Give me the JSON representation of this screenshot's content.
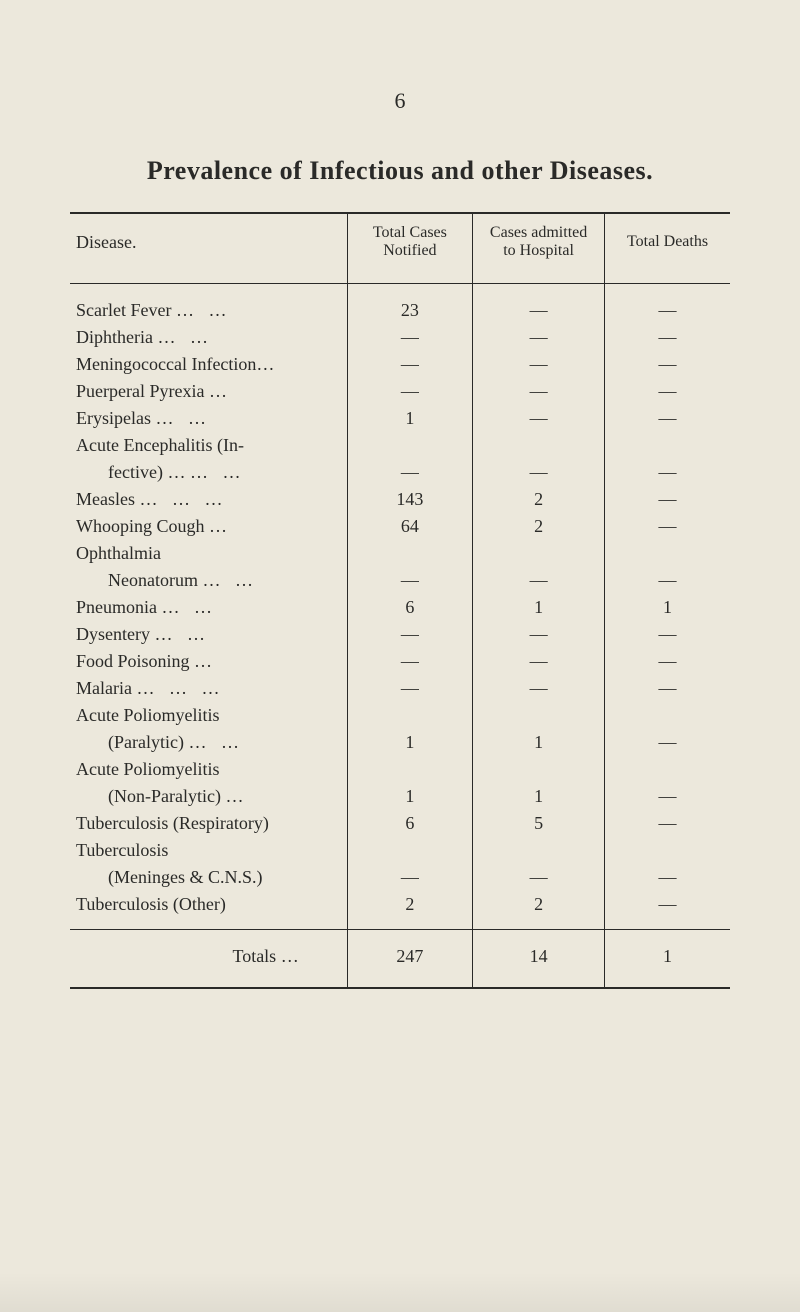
{
  "page_number": "6",
  "title": "Prevalence of Infectious and other Diseases.",
  "table": {
    "type": "table",
    "background_color": "#ece8dc",
    "rule_color": "#2a2a28",
    "text_color": "#2a2a28",
    "font_family": "Times New Roman",
    "body_fontsize": 18,
    "header_fontsize": 16,
    "column_widths_pct": [
      42,
      19,
      20,
      19
    ],
    "col_alignment": [
      "left",
      "center",
      "center",
      "center"
    ],
    "columns": {
      "disease": "Disease.",
      "total_cases_l1": "Total Cases",
      "total_cases_l2": "Notified",
      "admitted_l1": "Cases admitted",
      "admitted_l2": "to Hospital",
      "deaths": "Total Deaths"
    },
    "rows": [
      {
        "label": "Scarlet Fever",
        "dots": "…     …",
        "indent": 0,
        "cases": "23",
        "admitted": "—",
        "deaths": "—"
      },
      {
        "label": "Diphtheria",
        "dots": "…     …",
        "indent": 0,
        "cases": "—",
        "admitted": "—",
        "deaths": "—"
      },
      {
        "label": "Meningococcal Infection…",
        "dots": "",
        "indent": 0,
        "cases": "—",
        "admitted": "—",
        "deaths": "—"
      },
      {
        "label": "Puerperal Pyrexia",
        "dots": "…",
        "indent": 0,
        "cases": "—",
        "admitted": "—",
        "deaths": "—"
      },
      {
        "label": "Erysipelas",
        "dots": "…     …",
        "indent": 0,
        "cases": "1",
        "admitted": "—",
        "deaths": "—"
      },
      {
        "label": "Acute   Encephalitis   (In-",
        "dots": "",
        "indent": 0,
        "cases": "",
        "admitted": "",
        "deaths": ""
      },
      {
        "label": "fective) …",
        "dots": "…     …",
        "indent": 1,
        "cases": "—",
        "admitted": "—",
        "deaths": "—"
      },
      {
        "label": "Measles",
        "dots": "…     …     …",
        "indent": 0,
        "cases": "143",
        "admitted": "2",
        "deaths": "—"
      },
      {
        "label": "Whooping Cough",
        "dots": "…",
        "indent": 0,
        "cases": "64",
        "admitted": "2",
        "deaths": "—"
      },
      {
        "label": "Ophthalmia",
        "dots": "",
        "indent": 0,
        "cases": "",
        "admitted": "",
        "deaths": ""
      },
      {
        "label": "Neonatorum",
        "dots": "…     …",
        "indent": 1,
        "cases": "—",
        "admitted": "—",
        "deaths": "—"
      },
      {
        "label": "Pneumonia",
        "dots": "…     …",
        "indent": 0,
        "cases": "6",
        "admitted": "1",
        "deaths": "1"
      },
      {
        "label": "Dysentery",
        "dots": "…     …",
        "indent": 0,
        "cases": "—",
        "admitted": "—",
        "deaths": "—"
      },
      {
        "label": "Food Poisoning",
        "dots": "…",
        "indent": 0,
        "cases": "—",
        "admitted": "—",
        "deaths": "—"
      },
      {
        "label": "Malaria",
        "dots": "…     …     …",
        "indent": 0,
        "cases": "—",
        "admitted": "—",
        "deaths": "—"
      },
      {
        "label": "Acute Poliomyelitis",
        "dots": "",
        "indent": 0,
        "cases": "",
        "admitted": "",
        "deaths": ""
      },
      {
        "label": "(Paralytic)",
        "dots": "…     …",
        "indent": 1,
        "cases": "1",
        "admitted": "1",
        "deaths": "—"
      },
      {
        "label": "Acute Poliomyelitis",
        "dots": "",
        "indent": 0,
        "cases": "",
        "admitted": "",
        "deaths": ""
      },
      {
        "label": "(Non-Paralytic)",
        "dots": "…",
        "indent": 1,
        "cases": "1",
        "admitted": "1",
        "deaths": "—"
      },
      {
        "label": "Tuberculosis (Respiratory)",
        "dots": "",
        "indent": 0,
        "cases": "6",
        "admitted": "5",
        "deaths": "—"
      },
      {
        "label": "Tuberculosis",
        "dots": "",
        "indent": 0,
        "cases": "",
        "admitted": "",
        "deaths": ""
      },
      {
        "label": "(Meninges & C.N.S.)",
        "dots": "",
        "indent": 1,
        "cases": "—",
        "admitted": "—",
        "deaths": "—"
      },
      {
        "label": "Tuberculosis (Other)",
        "dots": "",
        "indent": 0,
        "cases": "2",
        "admitted": "2",
        "deaths": "—"
      }
    ],
    "totals": {
      "label": "Totals       …",
      "cases": "247",
      "admitted": "14",
      "deaths": "1"
    }
  }
}
